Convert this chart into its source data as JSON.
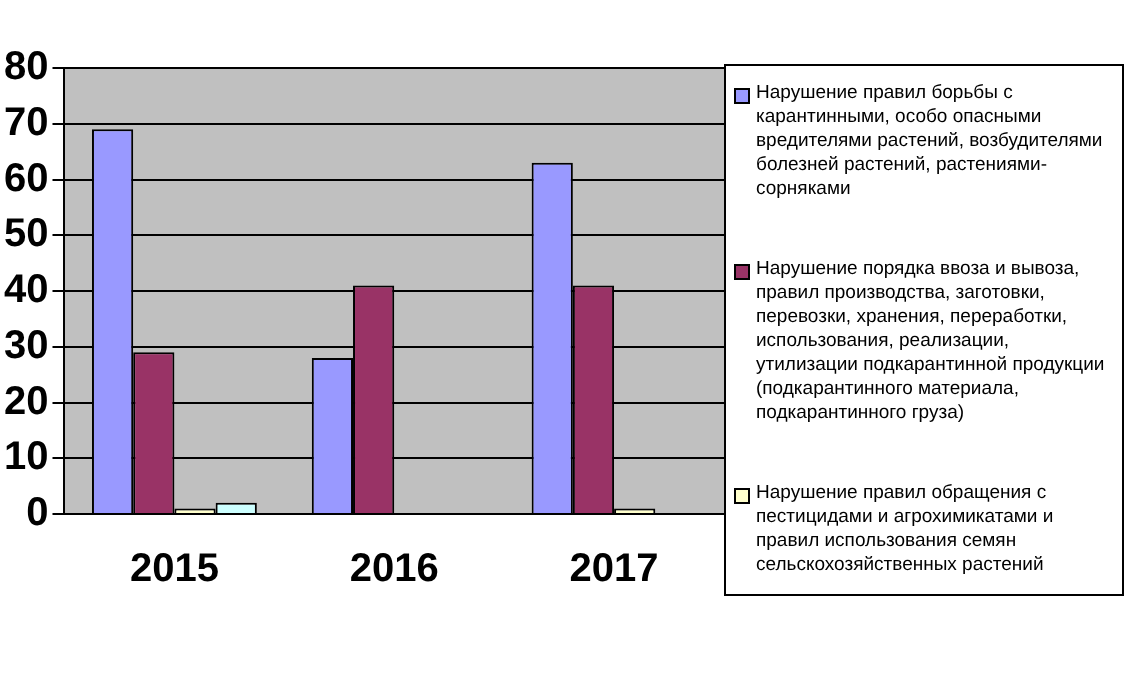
{
  "chart_data": {
    "type": "bar",
    "categories": [
      "2015",
      "2016",
      "2017"
    ],
    "series": [
      {
        "name": "Нарушение правил борьбы с карантинными, особо опасными вредителями растений, возбудителями болезней растений, растениями-сорняками",
        "color": "#9999ff",
        "values": [
          69,
          28,
          63
        ]
      },
      {
        "name": "Нарушение порядка ввоза и вывоза, правил производства, заготовки, перевозки, хранения, переработки, использования, реализации, утилизации подкарантинной продукции (подкарантинного материала, подкарантинного груза)",
        "color": "#993366",
        "values": [
          29,
          41,
          41
        ]
      },
      {
        "name": "Нарушение правил обращения с пестицидами и агрохимикатами и правил использования семян сельскохозяйственных растений",
        "color": "#ffffcc",
        "values": [
          1,
          0,
          1
        ]
      },
      {
        "color": "#ccffff",
        "values": [
          2,
          0,
          0
        ]
      }
    ],
    "ylim": [
      0,
      80
    ],
    "yticks": [
      0,
      10,
      20,
      30,
      40,
      50,
      60,
      70,
      80
    ],
    "grid": "y",
    "legend": "right"
  }
}
